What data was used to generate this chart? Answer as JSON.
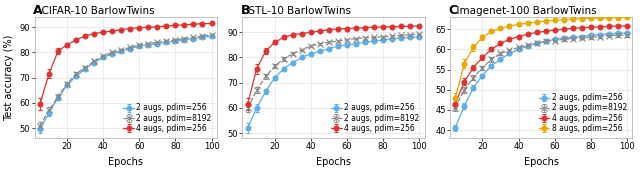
{
  "panels": [
    {
      "label": "A",
      "title": "CIFAR-10 BarlowTwins",
      "ylabel": "Test accuracy (%)",
      "xlabel": "Epochs",
      "xlim": [
        2,
        103
      ],
      "ylim": [
        46,
        94
      ],
      "yticks": [
        50,
        60,
        70,
        80,
        90
      ],
      "xticks": [
        20,
        40,
        60,
        80,
        100
      ],
      "series": [
        {
          "label": "2 augs, pdim=256",
          "color": "#5baee8",
          "linestyle": "-",
          "marker": "o",
          "markersize": 3.5,
          "x": [
            5,
            10,
            15,
            20,
            25,
            30,
            35,
            40,
            45,
            50,
            55,
            60,
            65,
            70,
            75,
            80,
            85,
            90,
            95,
            100
          ],
          "y": [
            49.5,
            56.0,
            62.0,
            67.0,
            70.5,
            73.5,
            76.0,
            78.0,
            79.5,
            80.5,
            81.5,
            82.5,
            83.0,
            83.5,
            84.0,
            84.5,
            85.0,
            85.5,
            86.0,
            86.5
          ],
          "yerr": [
            1.5,
            1.2,
            1.0,
            0.8,
            0.7,
            0.6,
            0.5,
            0.5,
            0.4,
            0.4,
            0.3,
            0.3,
            0.3,
            0.3,
            0.3,
            0.3,
            0.3,
            0.3,
            0.3,
            0.3
          ]
        },
        {
          "label": "2 augs, pdim=8192",
          "color": "#888888",
          "linestyle": "--",
          "marker": "x",
          "markersize": 4,
          "x": [
            5,
            10,
            15,
            20,
            25,
            30,
            35,
            40,
            45,
            50,
            55,
            60,
            65,
            70,
            75,
            80,
            85,
            90,
            95,
            100
          ],
          "y": [
            51.0,
            57.0,
            62.5,
            67.5,
            71.5,
            74.0,
            76.5,
            78.5,
            80.0,
            81.0,
            82.0,
            83.0,
            83.5,
            84.0,
            84.5,
            85.0,
            85.5,
            86.0,
            86.5,
            87.0
          ],
          "yerr": [
            1.5,
            1.2,
            1.0,
            0.8,
            0.7,
            0.6,
            0.5,
            0.5,
            0.4,
            0.4,
            0.3,
            0.3,
            0.3,
            0.3,
            0.3,
            0.3,
            0.3,
            0.3,
            0.3,
            0.3
          ]
        },
        {
          "label": "4 augs, pdim=256",
          "color": "#e03030",
          "linestyle": "-",
          "marker": "o",
          "markersize": 3.5,
          "x": [
            5,
            10,
            15,
            20,
            25,
            30,
            35,
            40,
            45,
            50,
            55,
            60,
            65,
            70,
            75,
            80,
            85,
            90,
            95,
            100
          ],
          "y": [
            59.5,
            71.5,
            80.5,
            83.0,
            85.0,
            86.5,
            87.5,
            88.0,
            88.5,
            89.0,
            89.5,
            89.8,
            90.0,
            90.2,
            90.5,
            90.7,
            91.0,
            91.2,
            91.4,
            91.5
          ],
          "yerr": [
            2.5,
            1.8,
            1.2,
            0.8,
            0.6,
            0.5,
            0.4,
            0.4,
            0.3,
            0.3,
            0.3,
            0.3,
            0.3,
            0.3,
            0.3,
            0.3,
            0.3,
            0.3,
            0.3,
            0.3
          ]
        }
      ]
    },
    {
      "label": "B",
      "title": "STL-10 BarlowTwins",
      "ylabel": "",
      "xlabel": "Epochs",
      "xlim": [
        2,
        103
      ],
      "ylim": [
        48,
        96
      ],
      "yticks": [
        50,
        60,
        70,
        80,
        90
      ],
      "xticks": [
        20,
        40,
        60,
        80,
        100
      ],
      "series": [
        {
          "label": "2 augs, pdim=256",
          "color": "#5baee8",
          "linestyle": "-",
          "marker": "o",
          "markersize": 3.5,
          "x": [
            5,
            10,
            15,
            20,
            25,
            30,
            35,
            40,
            45,
            50,
            55,
            60,
            65,
            70,
            75,
            80,
            85,
            90,
            95,
            100
          ],
          "y": [
            52.0,
            60.0,
            66.5,
            72.0,
            75.5,
            78.0,
            80.0,
            81.5,
            82.5,
            83.5,
            84.5,
            85.0,
            85.5,
            86.0,
            86.5,
            87.0,
            87.5,
            87.8,
            88.0,
            88.2
          ],
          "yerr": [
            2.0,
            1.5,
            1.0,
            0.8,
            0.7,
            0.6,
            0.5,
            0.5,
            0.4,
            0.4,
            0.3,
            0.3,
            0.3,
            0.3,
            0.3,
            0.3,
            0.3,
            0.3,
            0.3,
            0.3
          ]
        },
        {
          "label": "2 augs, pdim=8192",
          "color": "#888888",
          "linestyle": "--",
          "marker": "x",
          "markersize": 4,
          "x": [
            5,
            10,
            15,
            20,
            25,
            30,
            35,
            40,
            45,
            50,
            55,
            60,
            65,
            70,
            75,
            80,
            85,
            90,
            95,
            100
          ],
          "y": [
            60.0,
            67.0,
            72.5,
            76.5,
            79.5,
            81.5,
            83.0,
            84.5,
            85.5,
            86.0,
            86.5,
            87.0,
            87.5,
            87.8,
            88.0,
            88.2,
            88.5,
            88.8,
            89.0,
            89.2
          ],
          "yerr": [
            1.5,
            1.2,
            1.0,
            0.8,
            0.7,
            0.6,
            0.5,
            0.5,
            0.4,
            0.4,
            0.3,
            0.3,
            0.3,
            0.3,
            0.3,
            0.3,
            0.3,
            0.3,
            0.3,
            0.3
          ]
        },
        {
          "label": "4 augs, pdim=256",
          "color": "#e03030",
          "linestyle": "-",
          "marker": "o",
          "markersize": 3.5,
          "x": [
            5,
            10,
            15,
            20,
            25,
            30,
            35,
            40,
            45,
            50,
            55,
            60,
            65,
            70,
            75,
            80,
            85,
            90,
            95,
            100
          ],
          "y": [
            61.5,
            75.5,
            82.5,
            86.0,
            88.0,
            89.0,
            89.5,
            90.0,
            90.5,
            91.0,
            91.3,
            91.5,
            91.7,
            91.8,
            92.0,
            92.1,
            92.2,
            92.3,
            92.4,
            92.5
          ],
          "yerr": [
            2.5,
            2.0,
            1.2,
            0.8,
            0.6,
            0.5,
            0.4,
            0.4,
            0.3,
            0.3,
            0.3,
            0.3,
            0.3,
            0.3,
            0.3,
            0.3,
            0.3,
            0.3,
            0.3,
            0.3
          ]
        }
      ]
    },
    {
      "label": "C",
      "title": "Imagenet-100 BarlowTwins",
      "ylabel": "",
      "xlabel": "Epochs",
      "xlim": [
        2,
        103
      ],
      "ylim": [
        38,
        68
      ],
      "yticks": [
        40,
        45,
        50,
        55,
        60,
        65
      ],
      "xticks": [
        20,
        40,
        60,
        80,
        100
      ],
      "series": [
        {
          "label": "2 augs, pdim=256",
          "color": "#5baee8",
          "linestyle": "-",
          "marker": "o",
          "markersize": 3.5,
          "x": [
            5,
            10,
            15,
            20,
            25,
            30,
            35,
            40,
            45,
            50,
            55,
            60,
            65,
            70,
            75,
            80,
            85,
            90,
            95,
            100
          ],
          "y": [
            40.5,
            46.0,
            50.5,
            53.5,
            56.0,
            57.5,
            59.0,
            60.0,
            60.8,
            61.5,
            62.0,
            62.5,
            62.8,
            63.0,
            63.2,
            63.5,
            63.7,
            63.8,
            64.0,
            64.0
          ],
          "yerr": [
            0.8,
            0.7,
            0.6,
            0.5,
            0.5,
            0.4,
            0.4,
            0.3,
            0.3,
            0.3,
            0.3,
            0.3,
            0.3,
            0.3,
            0.3,
            0.3,
            0.3,
            0.3,
            0.3,
            0.3
          ]
        },
        {
          "label": "2 augs, pdim=8192",
          "color": "#888888",
          "linestyle": "--",
          "marker": "x",
          "markersize": 4,
          "x": [
            5,
            10,
            15,
            20,
            25,
            30,
            35,
            40,
            45,
            50,
            55,
            60,
            65,
            70,
            75,
            80,
            85,
            90,
            95,
            100
          ],
          "y": [
            45.5,
            50.0,
            53.0,
            55.5,
            57.5,
            59.0,
            59.8,
            60.5,
            61.0,
            61.5,
            62.0,
            62.2,
            62.5,
            62.7,
            62.8,
            63.0,
            63.2,
            63.4,
            63.5,
            63.5
          ],
          "yerr": [
            0.8,
            0.7,
            0.6,
            0.5,
            0.5,
            0.4,
            0.4,
            0.3,
            0.3,
            0.3,
            0.3,
            0.3,
            0.3,
            0.3,
            0.3,
            0.3,
            0.3,
            0.3,
            0.3,
            0.3
          ]
        },
        {
          "label": "4 augs, pdim=256",
          "color": "#e03030",
          "linestyle": "-",
          "marker": "o",
          "markersize": 3.5,
          "x": [
            5,
            10,
            15,
            20,
            25,
            30,
            35,
            40,
            45,
            50,
            55,
            60,
            65,
            70,
            75,
            80,
            85,
            90,
            95,
            100
          ],
          "y": [
            46.5,
            52.0,
            55.5,
            58.0,
            60.0,
            61.5,
            62.5,
            63.2,
            63.8,
            64.2,
            64.5,
            64.8,
            65.0,
            65.2,
            65.4,
            65.5,
            65.6,
            65.7,
            65.8,
            65.8
          ],
          "yerr": [
            1.0,
            0.8,
            0.7,
            0.6,
            0.5,
            0.4,
            0.4,
            0.3,
            0.3,
            0.3,
            0.3,
            0.3,
            0.3,
            0.3,
            0.3,
            0.3,
            0.3,
            0.3,
            0.3,
            0.3
          ]
        },
        {
          "label": "8 augs, pdim=256",
          "color": "#e8a800",
          "linestyle": "-",
          "marker": "o",
          "markersize": 3.5,
          "x": [
            5,
            10,
            15,
            20,
            25,
            30,
            35,
            40,
            45,
            50,
            55,
            60,
            65,
            70,
            75,
            80,
            85,
            90,
            95,
            100
          ],
          "y": [
            48.0,
            56.5,
            60.5,
            63.0,
            64.5,
            65.2,
            65.8,
            66.2,
            66.5,
            66.8,
            67.0,
            67.2,
            67.4,
            67.5,
            67.6,
            67.7,
            67.8,
            67.8,
            67.9,
            68.0
          ],
          "yerr": [
            1.2,
            1.0,
            0.8,
            0.6,
            0.5,
            0.4,
            0.4,
            0.3,
            0.3,
            0.3,
            0.3,
            0.3,
            0.3,
            0.3,
            0.3,
            0.3,
            0.3,
            0.3,
            0.3,
            0.3
          ]
        }
      ]
    }
  ],
  "bg_color": "#ffffff",
  "plot_bg_color": "#ffffff",
  "grid_color": "#e8e8e8",
  "label_fontsize": 7,
  "title_fontsize": 7.5,
  "panel_label_fontsize": 9,
  "tick_fontsize": 6,
  "legend_fontsize": 5.5
}
